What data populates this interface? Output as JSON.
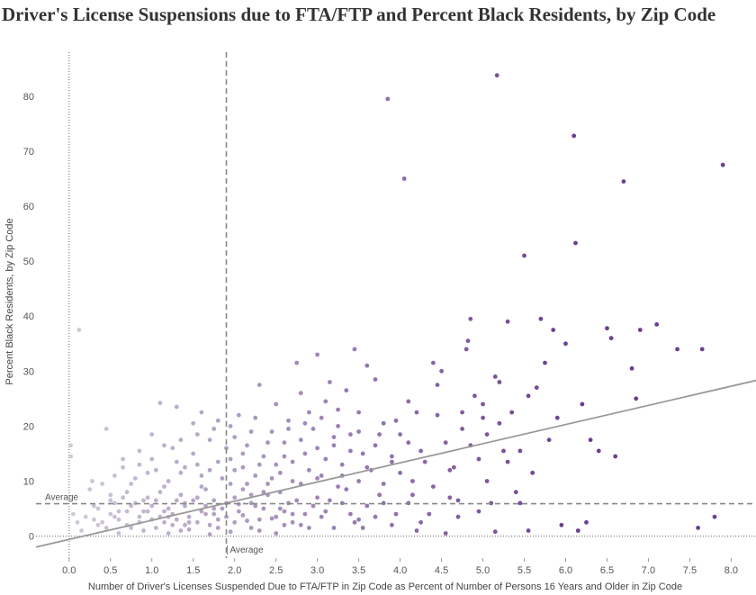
{
  "chart_data": {
    "type": "scatter",
    "title": "Driver's License Suspensions due to FTA/FTP and Percent Black Residents, by Zip Code",
    "xlabel": "Number of Driver's Licenses Suspended Due to FTA/FTP in Zip Code as Percent of Number of Persons 16 Years and Older in Zip Code",
    "ylabel": "Percent Black Residents, by Zip Code",
    "xlim": [
      -0.4,
      8.3
    ],
    "ylim": [
      -4,
      88
    ],
    "x_ticks": [
      "0.0",
      "0.5",
      "1.0",
      "1.5",
      "2.0",
      "2.5",
      "3.0",
      "3.5",
      "4.0",
      "4.5",
      "5.0",
      "5.5",
      "6.0",
      "6.5",
      "7.0",
      "7.5",
      "8.0"
    ],
    "y_ticks": [
      "0",
      "10",
      "20",
      "30",
      "40",
      "50",
      "60",
      "70",
      "80"
    ],
    "grid": false,
    "color_scale": {
      "low": "#cdc5d6",
      "high": "#5b2a86",
      "low_value": 0.0,
      "high_value": 6.0
    },
    "reference_lines": {
      "x_average": {
        "value": 1.9,
        "label": "Average"
      },
      "y_average": {
        "value": 5.9,
        "label": "Average"
      }
    },
    "trend_line": {
      "x": [
        -0.4,
        8.3
      ],
      "y": [
        -2.0,
        28.3
      ],
      "color": "#999999"
    },
    "points": [
      [
        0.02,
        16.5
      ],
      [
        0.02,
        14.5
      ],
      [
        0.12,
        37.5
      ],
      [
        0.05,
        4.0
      ],
      [
        0.1,
        2.5
      ],
      [
        0.15,
        1.0
      ],
      [
        0.2,
        3.5
      ],
      [
        0.25,
        8.5
      ],
      [
        0.28,
        10.0
      ],
      [
        0.3,
        5.5
      ],
      [
        0.35,
        2.0
      ],
      [
        0.4,
        9.5
      ],
      [
        0.45,
        19.5
      ],
      [
        0.5,
        6.5
      ],
      [
        0.55,
        11.0
      ],
      [
        0.6,
        3.0
      ],
      [
        0.65,
        14.0
      ],
      [
        0.7,
        8.0
      ],
      [
        0.75,
        1.5
      ],
      [
        0.8,
        10.5
      ],
      [
        0.85,
        15.5
      ],
      [
        0.9,
        4.5
      ],
      [
        0.95,
        7.0
      ],
      [
        1.0,
        18.5
      ],
      [
        1.05,
        12.0
      ],
      [
        1.1,
        24.2
      ],
      [
        1.15,
        9.0
      ],
      [
        1.2,
        3.5
      ],
      [
        1.25,
        16.0
      ],
      [
        1.3,
        23.5
      ],
      [
        1.35,
        11.5
      ],
      [
        1.4,
        6.0
      ],
      [
        1.45,
        2.5
      ],
      [
        1.5,
        20.5
      ],
      [
        1.55,
        13.0
      ],
      [
        1.6,
        22.5
      ],
      [
        1.65,
        8.5
      ],
      [
        1.7,
        17.5
      ],
      [
        1.75,
        4.0
      ],
      [
        1.8,
        21.0
      ],
      [
        1.85,
        10.5
      ],
      [
        1.95,
        14.0
      ],
      [
        2.0,
        18.0
      ],
      [
        2.05,
        22.0
      ],
      [
        2.1,
        12.5
      ],
      [
        2.15,
        16.5
      ],
      [
        2.2,
        7.5
      ],
      [
        2.25,
        21.5
      ],
      [
        2.3,
        27.5
      ],
      [
        2.35,
        14.5
      ],
      [
        2.4,
        9.5
      ],
      [
        2.45,
        19.0
      ],
      [
        2.5,
        24.0
      ],
      [
        2.55,
        11.5
      ],
      [
        2.6,
        17.0
      ],
      [
        2.65,
        21.0
      ],
      [
        2.7,
        13.5
      ],
      [
        2.75,
        31.5
      ],
      [
        2.8,
        26.0
      ],
      [
        2.85,
        15.0
      ],
      [
        2.9,
        22.5
      ],
      [
        2.95,
        19.5
      ],
      [
        3.0,
        33.0
      ],
      [
        3.05,
        11.0
      ],
      [
        3.1,
        24.5
      ],
      [
        3.15,
        28.0
      ],
      [
        3.2,
        16.5
      ],
      [
        3.25,
        20.0
      ],
      [
        3.3,
        13.0
      ],
      [
        3.35,
        26.5
      ],
      [
        3.4,
        18.5
      ],
      [
        3.45,
        34.0
      ],
      [
        3.5,
        22.5
      ],
      [
        3.55,
        15.0
      ],
      [
        3.6,
        31.0
      ],
      [
        3.65,
        12.0
      ],
      [
        3.7,
        28.5
      ],
      [
        3.75,
        18.5
      ],
      [
        3.8,
        9.5
      ],
      [
        3.85,
        79.5
      ],
      [
        3.9,
        14.5
      ],
      [
        3.95,
        21.0
      ],
      [
        4.0,
        11.5
      ],
      [
        4.05,
        65.0
      ],
      [
        4.1,
        17.0
      ],
      [
        4.15,
        7.5
      ],
      [
        4.2,
        22.5
      ],
      [
        4.3,
        13.5
      ],
      [
        4.35,
        4.0
      ],
      [
        4.4,
        31.5
      ],
      [
        4.45,
        22.0
      ],
      [
        4.5,
        30.0
      ],
      [
        4.55,
        17.0
      ],
      [
        4.6,
        7.0
      ],
      [
        4.65,
        12.5
      ],
      [
        4.7,
        3.5
      ],
      [
        4.75,
        22.5
      ],
      [
        4.8,
        34.0
      ],
      [
        4.82,
        35.5
      ],
      [
        4.85,
        39.5
      ],
      [
        4.9,
        25.5
      ],
      [
        4.95,
        14.0
      ],
      [
        5.0,
        21.5
      ],
      [
        5.05,
        10.0
      ],
      [
        5.1,
        6.0
      ],
      [
        5.15,
        29.0
      ],
      [
        5.17,
        83.8
      ],
      [
        5.2,
        20.5
      ],
      [
        5.25,
        15.5
      ],
      [
        5.3,
        39.0
      ],
      [
        5.35,
        22.5
      ],
      [
        5.4,
        8.0
      ],
      [
        5.45,
        15.5
      ],
      [
        5.5,
        51.0
      ],
      [
        5.55,
        25.5
      ],
      [
        5.6,
        11.5
      ],
      [
        5.65,
        27.0
      ],
      [
        5.7,
        39.5
      ],
      [
        5.75,
        31.5
      ],
      [
        5.8,
        17.5
      ],
      [
        5.85,
        37.5
      ],
      [
        5.9,
        21.5
      ],
      [
        6.0,
        35.0
      ],
      [
        6.1,
        72.8
      ],
      [
        6.12,
        53.3
      ],
      [
        6.15,
        1.0
      ],
      [
        6.2,
        24.0
      ],
      [
        6.3,
        17.5
      ],
      [
        6.4,
        15.5
      ],
      [
        6.5,
        37.8
      ],
      [
        6.55,
        36.0
      ],
      [
        6.6,
        14.5
      ],
      [
        6.7,
        64.5
      ],
      [
        6.8,
        30.5
      ],
      [
        6.85,
        25.0
      ],
      [
        6.9,
        37.5
      ],
      [
        7.1,
        38.5
      ],
      [
        7.35,
        34.0
      ],
      [
        7.6,
        1.5
      ],
      [
        7.65,
        34.0
      ],
      [
        7.8,
        3.5
      ],
      [
        7.9,
        67.5
      ],
      [
        5.55,
        1.0
      ],
      [
        5.95,
        2.0
      ],
      [
        6.25,
        2.5
      ],
      [
        4.2,
        1.0
      ],
      [
        4.55,
        0.5
      ],
      [
        5.15,
        0.8
      ],
      [
        3.2,
        1.5
      ],
      [
        2.5,
        0.5
      ],
      [
        0.6,
        0.5
      ],
      [
        0.9,
        1.0
      ],
      [
        1.2,
        0.5
      ],
      [
        1.45,
        1.2
      ],
      [
        1.7,
        0.3
      ],
      [
        1.95,
        0.8
      ],
      [
        2.2,
        1.5
      ],
      [
        2.8,
        2.0
      ],
      [
        3.5,
        3.0
      ],
      [
        3.9,
        2.0
      ],
      [
        0.35,
        5.0
      ],
      [
        0.55,
        3.5
      ],
      [
        0.7,
        2.0
      ],
      [
        0.95,
        4.5
      ],
      [
        1.05,
        6.5
      ],
      [
        1.3,
        3.0
      ],
      [
        1.4,
        5.5
      ],
      [
        1.55,
        2.5
      ],
      [
        1.65,
        4.0
      ],
      [
        1.75,
        6.5
      ],
      [
        1.9,
        3.5
      ],
      [
        2.05,
        4.5
      ],
      [
        2.15,
        2.8
      ],
      [
        2.35,
        5.0
      ],
      [
        2.45,
        3.2
      ],
      [
        2.6,
        4.5
      ],
      [
        2.7,
        2.5
      ],
      [
        2.95,
        5.5
      ],
      [
        3.05,
        3.5
      ],
      [
        3.3,
        6.0
      ],
      [
        0.45,
        1.5
      ],
      [
        0.65,
        7.0
      ],
      [
        0.85,
        2.5
      ],
      [
        1.1,
        8.0
      ],
      [
        1.25,
        2.0
      ],
      [
        1.35,
        7.5
      ],
      [
        1.6,
        9.0
      ],
      [
        1.8,
        1.5
      ],
      [
        2.1,
        8.5
      ],
      [
        2.3,
        3.0
      ],
      [
        2.55,
        8.0
      ],
      [
        2.75,
        6.5
      ],
      [
        3.0,
        7.0
      ],
      [
        3.25,
        9.0
      ],
      [
        3.45,
        2.5
      ],
      [
        3.6,
        5.5
      ],
      [
        3.75,
        7.5
      ],
      [
        3.95,
        4.0
      ],
      [
        4.1,
        6.0
      ],
      [
        4.25,
        2.5
      ],
      [
        0.75,
        5.5
      ],
      [
        1.0,
        3.0
      ],
      [
        1.15,
        4.5
      ],
      [
        1.5,
        6.5
      ],
      [
        1.85,
        5.0
      ],
      [
        2.0,
        7.0
      ],
      [
        2.25,
        5.5
      ],
      [
        2.4,
        7.5
      ],
      [
        2.65,
        6.0
      ],
      [
        2.85,
        4.0
      ],
      [
        0.5,
        4.0
      ],
      [
        0.8,
        6.0
      ],
      [
        1.05,
        1.5
      ],
      [
        1.2,
        5.0
      ],
      [
        1.35,
        1.0
      ],
      [
        1.45,
        3.5
      ],
      [
        1.6,
        4.5
      ],
      [
        1.7,
        2.0
      ],
      [
        1.9,
        6.0
      ],
      [
        2.0,
        2.5
      ],
      [
        2.2,
        6.0
      ],
      [
        2.3,
        1.0
      ],
      [
        2.5,
        3.5
      ],
      [
        2.6,
        2.0
      ],
      [
        2.7,
        4.0
      ],
      [
        2.9,
        1.5
      ],
      [
        3.1,
        4.5
      ],
      [
        3.4,
        4.0
      ],
      [
        3.55,
        1.5
      ],
      [
        3.7,
        3.5
      ],
      [
        0.4,
        2.5
      ],
      [
        0.6,
        4.5
      ],
      [
        0.85,
        3.5
      ],
      [
        1.0,
        5.5
      ],
      [
        1.15,
        2.5
      ],
      [
        1.3,
        6.5
      ],
      [
        1.55,
        7.0
      ],
      [
        1.75,
        5.0
      ],
      [
        1.95,
        9.5
      ],
      [
        2.1,
        3.8
      ],
      [
        0.3,
        3.0
      ],
      [
        0.55,
        6.0
      ],
      [
        0.7,
        4.5
      ],
      [
        0.9,
        6.5
      ],
      [
        1.1,
        3.5
      ],
      [
        1.25,
        4.0
      ],
      [
        1.4,
        2.0
      ],
      [
        1.65,
        5.5
      ],
      [
        1.8,
        3.0
      ],
      [
        2.05,
        5.8
      ],
      [
        2.15,
        9.5
      ],
      [
        2.35,
        8.0
      ],
      [
        2.45,
        10.5
      ],
      [
        2.55,
        5.0
      ],
      [
        2.8,
        9.5
      ],
      [
        3.0,
        10.5
      ],
      [
        3.15,
        6.5
      ],
      [
        3.35,
        8.5
      ],
      [
        3.5,
        10.0
      ],
      [
        3.8,
        6.0
      ],
      [
        0.5,
        7.5
      ],
      [
        0.75,
        9.5
      ],
      [
        0.95,
        11.5
      ],
      [
        1.2,
        10.0
      ],
      [
        1.4,
        12.5
      ],
      [
        1.6,
        11.0
      ],
      [
        1.8,
        13.5
      ],
      [
        2.0,
        12.0
      ],
      [
        2.25,
        11.0
      ],
      [
        2.5,
        13.0
      ],
      [
        2.7,
        10.0
      ],
      [
        2.9,
        12.0
      ],
      [
        3.1,
        14.0
      ],
      [
        3.3,
        11.0
      ],
      [
        3.6,
        12.5
      ],
      [
        3.9,
        13.5
      ],
      [
        4.15,
        10.0
      ],
      [
        4.4,
        9.0
      ],
      [
        4.7,
        6.5
      ],
      [
        4.95,
        4.5
      ],
      [
        1.0,
        14.0
      ],
      [
        1.3,
        13.5
      ],
      [
        1.5,
        15.0
      ],
      [
        1.7,
        12.0
      ],
      [
        1.9,
        16.0
      ],
      [
        2.1,
        15.0
      ],
      [
        2.3,
        13.0
      ],
      [
        2.6,
        14.5
      ],
      [
        2.8,
        17.5
      ],
      [
        3.0,
        16.0
      ],
      [
        3.2,
        18.0
      ],
      [
        3.4,
        15.5
      ],
      [
        3.7,
        16.5
      ],
      [
        4.0,
        18.5
      ],
      [
        4.25,
        15.5
      ],
      [
        4.6,
        12.0
      ],
      [
        4.85,
        16.5
      ],
      [
        5.05,
        18.5
      ],
      [
        5.3,
        13.5
      ],
      [
        5.45,
        6.0
      ],
      [
        0.65,
        12.5
      ],
      [
        0.85,
        13.0
      ],
      [
        1.15,
        16.5
      ],
      [
        1.35,
        17.5
      ],
      [
        1.55,
        18.5
      ],
      [
        1.75,
        19.5
      ],
      [
        1.95,
        20.0
      ],
      [
        2.2,
        19.0
      ],
      [
        2.4,
        17.0
      ],
      [
        2.65,
        19.5
      ],
      [
        2.85,
        20.5
      ],
      [
        3.05,
        21.5
      ],
      [
        3.25,
        23.0
      ],
      [
        3.5,
        19.0
      ],
      [
        3.8,
        20.5
      ],
      [
        4.1,
        24.5
      ],
      [
        4.45,
        27.5
      ],
      [
        4.75,
        19.5
      ],
      [
        5.0,
        24.0
      ],
      [
        5.2,
        28.0
      ]
    ]
  }
}
